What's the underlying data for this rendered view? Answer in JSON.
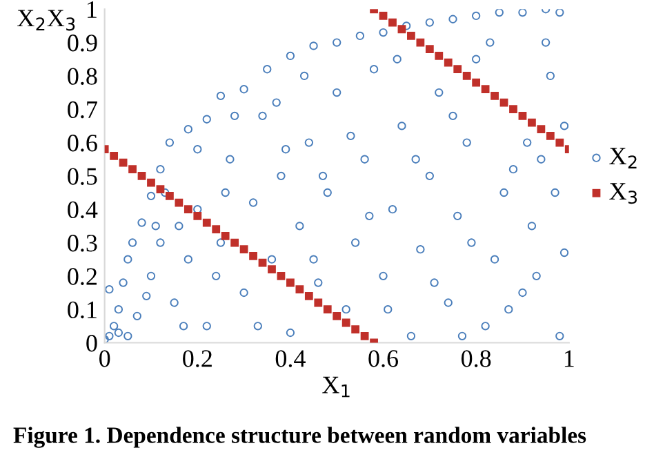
{
  "chart_data": {
    "type": "scatter",
    "xlabel": "X$_{1}$",
    "ylabel": "X$_{2}$X$_{3}$",
    "xlim": [
      0,
      1
    ],
    "ylim": [
      0,
      1
    ],
    "xticks": [
      0,
      0.2,
      0.4,
      0.6,
      0.8,
      1
    ],
    "yticks": [
      0,
      0.1,
      0.2,
      0.3,
      0.4,
      0.5,
      0.6,
      0.7,
      0.8,
      0.9,
      1
    ],
    "grid": false,
    "legend": "right",
    "annotations": [
      "Figure 1. Dependence structure between random variables"
    ],
    "series": [
      {
        "name": "X$_{2}$",
        "color": "#4a7ebb",
        "marker": "circle",
        "x": [
          0.01,
          0.02,
          0.0,
          0.03,
          0.01,
          0.05,
          0.04,
          0.06,
          0.08,
          0.1,
          0.12,
          0.14,
          0.18,
          0.22,
          0.25,
          0.3,
          0.35,
          0.4,
          0.45,
          0.5,
          0.55,
          0.6,
          0.65,
          0.7,
          0.75,
          0.8,
          0.85,
          0.9,
          0.95,
          0.98,
          0.07,
          0.1,
          0.12,
          0.15,
          0.18,
          0.2,
          0.22,
          0.25,
          0.27,
          0.3,
          0.32,
          0.34,
          0.36,
          0.38,
          0.4,
          0.42,
          0.44,
          0.46,
          0.48,
          0.5,
          0.52,
          0.54,
          0.56,
          0.58,
          0.6,
          0.62,
          0.64,
          0.66,
          0.68,
          0.7,
          0.72,
          0.74,
          0.76,
          0.78,
          0.8,
          0.82,
          0.84,
          0.86,
          0.88,
          0.9,
          0.92,
          0.94,
          0.96,
          0.98,
          0.99,
          0.97,
          0.99,
          0.95,
          0.05,
          0.09,
          0.13,
          0.16,
          0.2,
          0.24,
          0.28,
          0.33,
          0.37,
          0.43,
          0.47,
          0.53,
          0.57,
          0.63,
          0.67,
          0.71,
          0.75,
          0.79,
          0.83,
          0.87,
          0.91,
          0.93,
          0.77,
          0.61,
          0.45,
          0.39,
          0.26,
          0.17,
          0.11,
          0.03
        ],
        "values": [
          0.02,
          0.05,
          0.01,
          0.1,
          0.16,
          0.25,
          0.18,
          0.3,
          0.36,
          0.44,
          0.52,
          0.6,
          0.64,
          0.67,
          0.74,
          0.76,
          0.82,
          0.86,
          0.89,
          0.9,
          0.92,
          0.93,
          0.95,
          0.96,
          0.97,
          0.98,
          0.99,
          0.99,
          1.0,
          0.99,
          0.08,
          0.2,
          0.3,
          0.12,
          0.25,
          0.4,
          0.05,
          0.3,
          0.55,
          0.15,
          0.42,
          0.68,
          0.25,
          0.5,
          0.03,
          0.35,
          0.6,
          0.18,
          0.45,
          0.75,
          0.1,
          0.3,
          0.55,
          0.82,
          0.2,
          0.4,
          0.65,
          0.02,
          0.28,
          0.5,
          0.75,
          0.12,
          0.38,
          0.6,
          0.85,
          0.05,
          0.25,
          0.45,
          0.52,
          0.15,
          0.35,
          0.55,
          0.8,
          0.02,
          0.27,
          0.45,
          0.65,
          0.9,
          0.02,
          0.14,
          0.45,
          0.35,
          0.58,
          0.2,
          0.68,
          0.05,
          0.72,
          0.8,
          0.5,
          0.62,
          0.38,
          0.85,
          0.55,
          0.18,
          0.68,
          0.3,
          0.9,
          0.1,
          0.6,
          0.2,
          0.02,
          0.1,
          0.25,
          0.58,
          0.45,
          0.05,
          0.35,
          0.03
        ]
      },
      {
        "name": "X$_{3}$",
        "color": "#c0302a",
        "marker": "square",
        "x": [
          0.0,
          0.02,
          0.04,
          0.06,
          0.08,
          0.1,
          0.12,
          0.14,
          0.16,
          0.18,
          0.2,
          0.22,
          0.24,
          0.26,
          0.28,
          0.3,
          0.32,
          0.34,
          0.36,
          0.38,
          0.4,
          0.42,
          0.44,
          0.46,
          0.48,
          0.5,
          0.52,
          0.54,
          0.56,
          0.58,
          0.58,
          0.6,
          0.62,
          0.64,
          0.66,
          0.68,
          0.7,
          0.72,
          0.74,
          0.76,
          0.78,
          0.8,
          0.82,
          0.84,
          0.86,
          0.88,
          0.9,
          0.92,
          0.94,
          0.96,
          0.98,
          1.0
        ],
        "values": [
          0.58,
          0.56,
          0.54,
          0.52,
          0.5,
          0.48,
          0.46,
          0.44,
          0.42,
          0.4,
          0.38,
          0.36,
          0.34,
          0.32,
          0.3,
          0.28,
          0.26,
          0.24,
          0.22,
          0.2,
          0.18,
          0.16,
          0.14,
          0.12,
          0.1,
          0.08,
          0.06,
          0.04,
          0.02,
          0.0,
          1.0,
          0.98,
          0.96,
          0.94,
          0.92,
          0.9,
          0.88,
          0.86,
          0.84,
          0.82,
          0.8,
          0.78,
          0.76,
          0.74,
          0.72,
          0.7,
          0.68,
          0.66,
          0.64,
          0.62,
          0.6,
          0.58
        ]
      }
    ]
  }
}
